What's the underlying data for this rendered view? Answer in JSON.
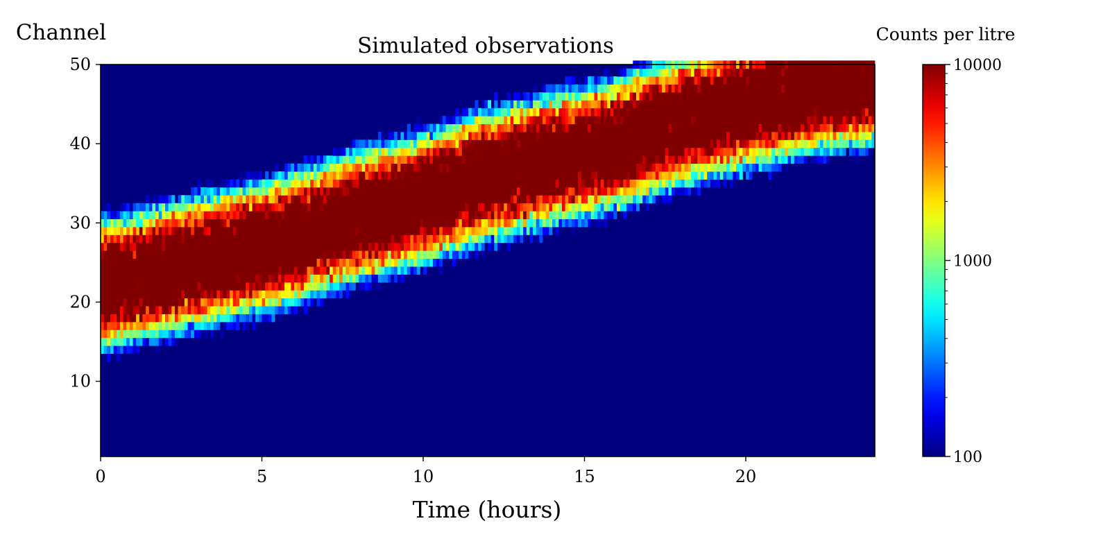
{
  "chart_data": {
    "type": "heatmap",
    "title": "Simulated observations",
    "xlabel": "Time (hours)",
    "ylabel": "Channel",
    "colorbar_label": "Counts per litre",
    "xlim": [
      0,
      24
    ],
    "ylim": [
      1,
      50
    ],
    "x_ticks": [
      0,
      5,
      10,
      15,
      20
    ],
    "y_ticks": [
      10,
      20,
      30,
      40,
      50
    ],
    "colorbar": {
      "scale": "log",
      "range": [
        100,
        10000
      ],
      "ticks": [
        100,
        1000,
        10000
      ],
      "colormap": "jet"
    },
    "grid": false,
    "n_time_bins": 240,
    "n_channels": 50,
    "peak_channel_by_hour": {
      "hours": [
        0,
        2,
        4,
        6,
        8,
        10,
        12,
        14,
        16,
        18,
        20,
        22,
        24
      ],
      "channel": [
        22,
        24,
        26,
        28,
        31,
        33,
        36,
        38,
        40,
        43,
        45,
        47,
        48
      ]
    },
    "band_halfwidth_channels_at_10000": {
      "hours": [
        0,
        12,
        24
      ],
      "halfwidth": [
        3,
        3,
        3
      ]
    }
  },
  "colors": {
    "background_min": "#00007f",
    "max": "#7f0000"
  }
}
